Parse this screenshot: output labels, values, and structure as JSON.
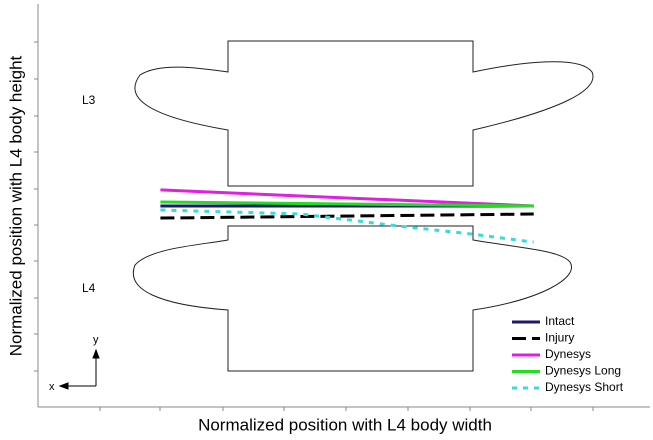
{
  "chart_data": {
    "type": "line",
    "xlabel": "Normalized position with L4 body width",
    "ylabel": "Normalized position with L4 body height",
    "annotations": [
      "L3",
      "L4",
      "y",
      "x"
    ],
    "xlim": [
      0,
      1
    ],
    "ylim": [
      0,
      1
    ],
    "legend": "lower right",
    "series": [
      {
        "name": "Intact",
        "color": "#1a1a6e",
        "linestyle": "solid",
        "x": [
          0.2,
          0.81
        ],
        "values": [
          0.5,
          0.5
        ]
      },
      {
        "name": "Injury",
        "color": "#000000",
        "linestyle": "dashed",
        "x": [
          0.2,
          0.81
        ],
        "values": [
          0.47,
          0.48
        ]
      },
      {
        "name": "Dynesys",
        "color": "#e020e0",
        "linestyle": "solid",
        "x": [
          0.2,
          0.81
        ],
        "values": [
          0.54,
          0.5
        ]
      },
      {
        "name": "Dynesys Long",
        "color": "#22dd22",
        "linestyle": "solid",
        "x": [
          0.2,
          0.81
        ],
        "values": [
          0.51,
          0.5
        ]
      },
      {
        "name": "Dynesys Short",
        "color": "#33dddd",
        "linestyle": "dotted",
        "x": [
          0.2,
          0.43,
          0.59,
          0.71,
          0.81
        ],
        "values": [
          0.49,
          0.48,
          0.45,
          0.43,
          0.41
        ]
      }
    ]
  }
}
